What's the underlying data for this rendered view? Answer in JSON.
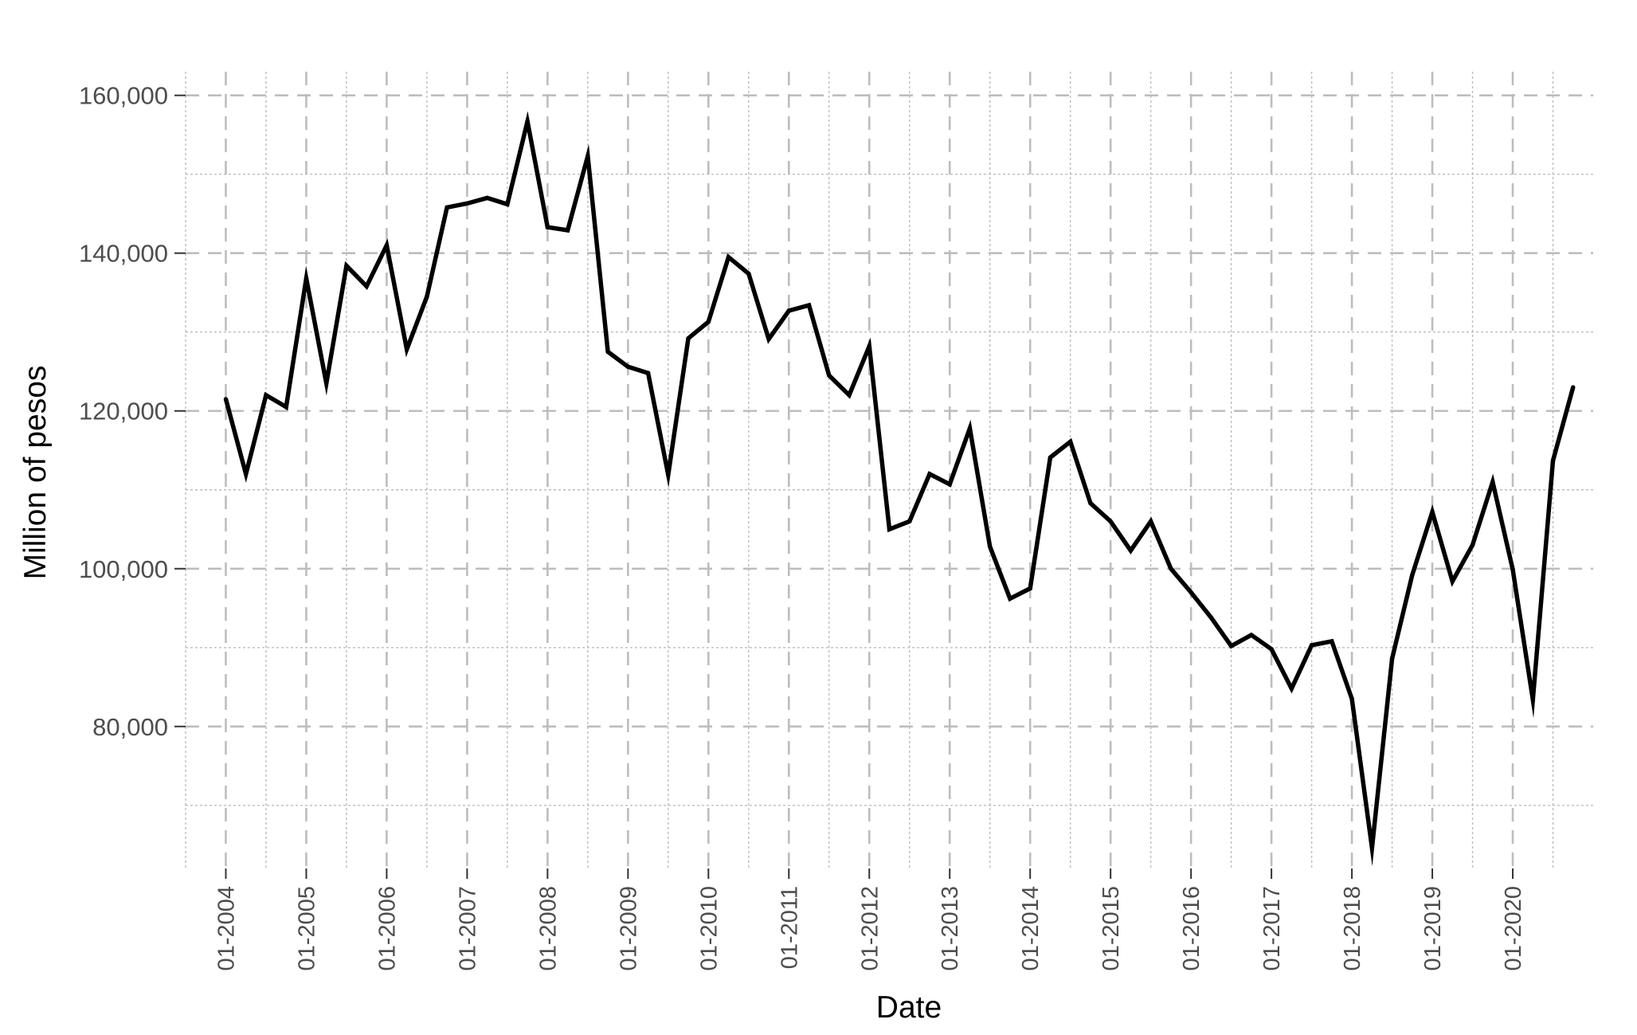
{
  "chart_data": {
    "type": "line",
    "title": "",
    "xlabel": "Date",
    "ylabel": "Million of pesos",
    "y_tick_labels": [
      "80,000",
      "100,000",
      "120,000",
      "140,000",
      "160,000"
    ],
    "y_ticks": [
      80000,
      100000,
      120000,
      140000,
      160000
    ],
    "ylim": [
      62000,
      163000
    ],
    "x_tick_labels": [
      "01-2004",
      "01-2005",
      "01-2006",
      "01-2007",
      "01-2008",
      "01-2009",
      "01-2010",
      "01-2011",
      "01-2012",
      "01-2013",
      "01-2014",
      "01-2015",
      "01-2016",
      "01-2017",
      "01-2018",
      "01-2019",
      "01-2020"
    ],
    "x_ticks": [
      "2004-01",
      "2005-01",
      "2006-01",
      "2007-01",
      "2008-01",
      "2009-01",
      "2010-01",
      "2011-01",
      "2012-01",
      "2013-01",
      "2014-01",
      "2015-01",
      "2016-01",
      "2017-01",
      "2018-01",
      "2019-01",
      "2020-01"
    ],
    "xlim": [
      "2003-07",
      "2021-01"
    ],
    "grid": true,
    "legend": "none",
    "line_color": "#000000",
    "grid_color": "#bdbdbd",
    "tick_color": "#333333",
    "series": [
      {
        "x": [
          "2004-01",
          "2004-04",
          "2004-07",
          "2004-10",
          "2005-01",
          "2005-04",
          "2005-07",
          "2005-10",
          "2006-01",
          "2006-04",
          "2006-07",
          "2006-10",
          "2007-01",
          "2007-04",
          "2007-07",
          "2007-10",
          "2008-01",
          "2008-04",
          "2008-07",
          "2008-10",
          "2009-01",
          "2009-04",
          "2009-07",
          "2009-10",
          "2010-01",
          "2010-04",
          "2010-07",
          "2010-10",
          "2011-01",
          "2011-04",
          "2011-07",
          "2011-10",
          "2012-01",
          "2012-04",
          "2012-07",
          "2012-10",
          "2013-01",
          "2013-04",
          "2013-07",
          "2013-10",
          "2014-01",
          "2014-04",
          "2014-07",
          "2014-10",
          "2015-01",
          "2015-04",
          "2015-07",
          "2015-10",
          "2016-01",
          "2016-04",
          "2016-07",
          "2016-10",
          "2017-01",
          "2017-04",
          "2017-07",
          "2017-10",
          "2018-01",
          "2018-04",
          "2018-07",
          "2018-10",
          "2019-01",
          "2019-04",
          "2019-07",
          "2019-10",
          "2020-01",
          "2020-04",
          "2020-07",
          "2020-10"
        ],
        "values": [
          121500,
          112000,
          122000,
          120500,
          136800,
          123500,
          138400,
          135800,
          141000,
          127800,
          134500,
          145800,
          146300,
          147000,
          146200,
          156700,
          143300,
          142900,
          152300,
          127500,
          125600,
          124800,
          111900,
          129200,
          131300,
          139500,
          137400,
          129100,
          132700,
          133400,
          124500,
          122000,
          128200,
          105000,
          106000,
          112000,
          110700,
          117800,
          102800,
          96200,
          97500,
          114100,
          116100,
          108300,
          106000,
          102300,
          106000,
          100000,
          97000,
          93800,
          90200,
          91600,
          89800,
          84800,
          90300,
          90800,
          83500,
          64600,
          88600,
          99200,
          107200,
          98400,
          103000,
          111000,
          99900,
          83400,
          113700,
          123000
        ]
      }
    ]
  }
}
